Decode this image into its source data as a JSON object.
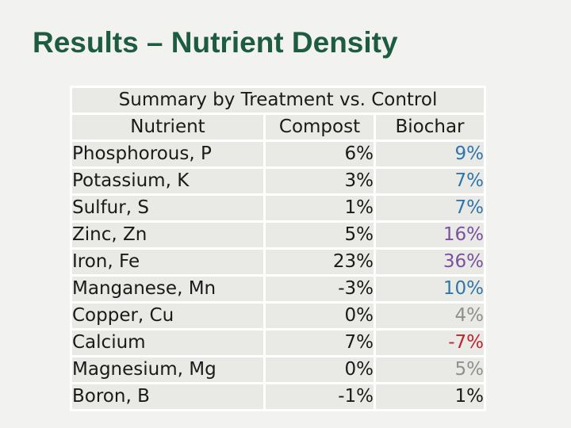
{
  "slide": {
    "title": "Results – Nutrient Density",
    "title_color": "#1e5c42",
    "background_color": "#f2f2f0"
  },
  "table": {
    "caption": "Summary by Treatment vs. Control",
    "columns": [
      "Nutrient",
      "Compost",
      "Biochar"
    ],
    "cell_background": "#e9e9e6",
    "grid_color": "#ffffff",
    "value_palette": {
      "default": "#1a1a1a",
      "blue": "#2e76ab",
      "purple": "#7a50a0",
      "gray": "#8f8f8f",
      "red": "#c0232e"
    },
    "rows": [
      {
        "nutrient": "Phosphorous, P",
        "compost": "6%",
        "compost_color": "#1a1a1a",
        "biochar": "9%",
        "biochar_color": "#2e76ab"
      },
      {
        "nutrient": "Potassium, K",
        "compost": "3%",
        "compost_color": "#1a1a1a",
        "biochar": "7%",
        "biochar_color": "#2e76ab"
      },
      {
        "nutrient": "Sulfur, S",
        "compost": "1%",
        "compost_color": "#1a1a1a",
        "biochar": "7%",
        "biochar_color": "#2e76ab"
      },
      {
        "nutrient": "Zinc, Zn",
        "compost": "5%",
        "compost_color": "#1a1a1a",
        "biochar": "16%",
        "biochar_color": "#7a50a0"
      },
      {
        "nutrient": "Iron, Fe",
        "compost": "23%",
        "compost_color": "#1a1a1a",
        "biochar": "36%",
        "biochar_color": "#7a50a0"
      },
      {
        "nutrient": "Manganese, Mn",
        "compost": "-3%",
        "compost_color": "#1a1a1a",
        "biochar": "10%",
        "biochar_color": "#2e76ab"
      },
      {
        "nutrient": "Copper, Cu",
        "compost": "0%",
        "compost_color": "#1a1a1a",
        "biochar": "4%",
        "biochar_color": "#8f8f8f"
      },
      {
        "nutrient": "Calcium",
        "compost": "7%",
        "compost_color": "#1a1a1a",
        "biochar": "-7%",
        "biochar_color": "#c0232e"
      },
      {
        "nutrient": "Magnesium, Mg",
        "compost": "0%",
        "compost_color": "#1a1a1a",
        "biochar": "5%",
        "biochar_color": "#8f8f8f"
      },
      {
        "nutrient": "Boron, B",
        "compost": "-1%",
        "compost_color": "#1a1a1a",
        "biochar": "1%",
        "biochar_color": "#1a1a1a"
      }
    ]
  }
}
